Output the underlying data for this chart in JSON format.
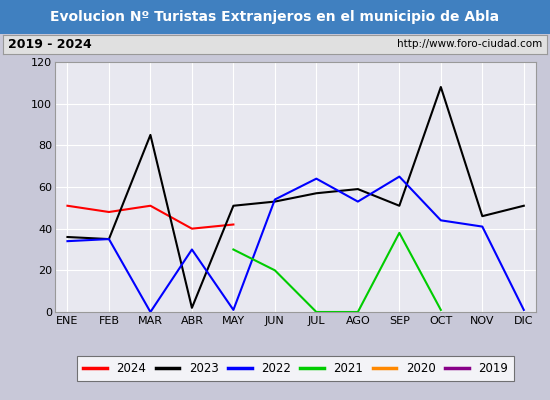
{
  "title": "Evolucion Nº Turistas Extranjeros en el municipio de Abla",
  "subtitle_left": "2019 - 2024",
  "subtitle_right": "http://www.foro-ciudad.com",
  "months": [
    "ENE",
    "FEB",
    "MAR",
    "ABR",
    "MAY",
    "JUN",
    "JUL",
    "AGO",
    "SEP",
    "OCT",
    "NOV",
    "DIC"
  ],
  "series_2024": [
    51,
    48,
    51,
    40,
    42,
    null,
    null,
    null,
    null,
    null,
    null,
    null
  ],
  "series_2023": [
    36,
    35,
    85,
    2,
    51,
    53,
    57,
    59,
    51,
    108,
    46,
    51
  ],
  "series_2022": [
    34,
    35,
    0,
    30,
    1,
    54,
    64,
    53,
    65,
    44,
    41,
    1
  ],
  "series_2021": [
    null,
    null,
    null,
    null,
    30,
    20,
    0,
    0,
    38,
    1,
    null,
    null
  ],
  "series_2020": [
    null,
    null,
    null,
    null,
    null,
    null,
    null,
    null,
    null,
    null,
    null,
    null
  ],
  "series_2019": [
    null,
    null,
    null,
    null,
    null,
    null,
    null,
    null,
    null,
    null,
    null,
    null
  ],
  "colors": {
    "2024": "#ff0000",
    "2023": "#000000",
    "2022": "#0000ff",
    "2021": "#00cc00",
    "2020": "#ff8800",
    "2019": "#880088"
  },
  "legend_order": [
    "2024",
    "2023",
    "2022",
    "2021",
    "2020",
    "2019"
  ],
  "ylim": [
    0,
    120
  ],
  "yticks": [
    0,
    20,
    40,
    60,
    80,
    100,
    120
  ],
  "title_bg": "#4080c0",
  "subtitle_bg": "#e0e0e0",
  "plot_bg": "#e8e8f0",
  "grid_color": "#ffffff",
  "line_width": 1.5,
  "title_fontsize": 10,
  "tick_fontsize": 8
}
